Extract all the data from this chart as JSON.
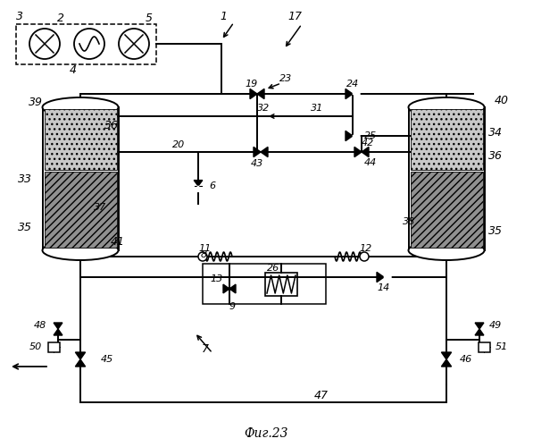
{
  "title": "Фиг.23",
  "bg": "#ffffff",
  "lw": 1.4,
  "lw_thin": 1.0,
  "fig_w": 5.97,
  "fig_h": 5.0,
  "dpi": 100
}
